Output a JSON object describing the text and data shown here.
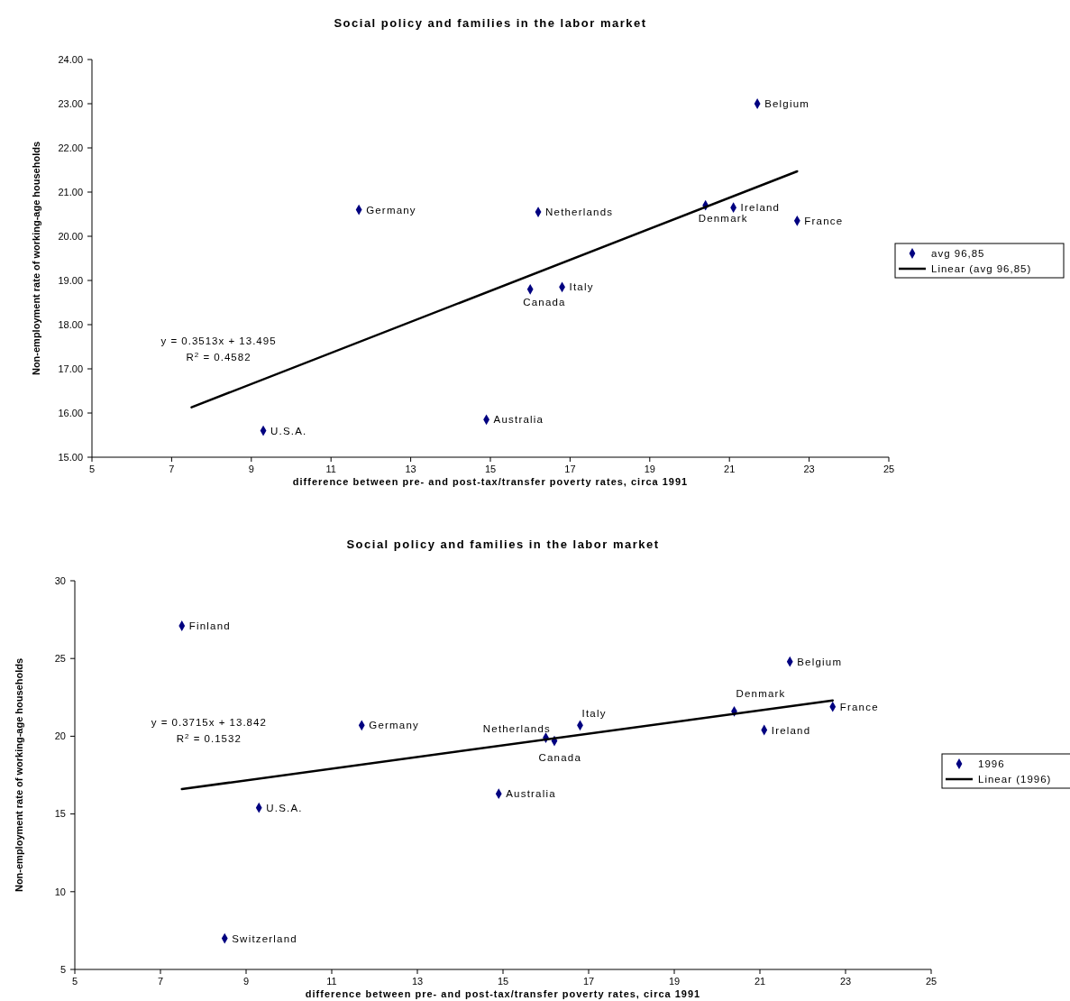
{
  "chart_data": [
    {
      "type": "scatter",
      "title": "Social policy and families in the labor market",
      "xlabel": "difference between pre- and post-tax/transfer poverty rates, circa 1991",
      "ylabel": "Non-employment rate of working-age households",
      "xlim": [
        5,
        25
      ],
      "xticks": [
        5,
        7,
        9,
        11,
        13,
        15,
        17,
        19,
        21,
        23,
        25
      ],
      "ylim": [
        15,
        24
      ],
      "yticks": [
        {
          "value": 15,
          "label": "15.00"
        },
        {
          "value": 16,
          "label": "16.00"
        },
        {
          "value": 17,
          "label": "17.00"
        },
        {
          "value": 18,
          "label": "18.00"
        },
        {
          "value": 19,
          "label": "19.00"
        },
        {
          "value": 20,
          "label": "20.00"
        },
        {
          "value": 21,
          "label": "21.00"
        },
        {
          "value": 22,
          "label": "22.00"
        },
        {
          "value": 23,
          "label": "23.00"
        },
        {
          "value": 24,
          "label": "24.00"
        }
      ],
      "grid": false,
      "legend": "right",
      "marker": "diamond",
      "series": [
        {
          "name": "avg 96,85",
          "color": "#000080",
          "x": [
            21.7,
            11.7,
            16.2,
            20.4,
            21.1,
            22.7,
            16.8,
            16.0,
            14.9,
            9.3
          ],
          "values": [
            23.0,
            20.6,
            20.55,
            20.7,
            20.65,
            20.35,
            18.85,
            18.8,
            15.85,
            15.6
          ]
        },
        {
          "name": "Linear (avg 96,85)",
          "type": "line",
          "color": "#000000",
          "marker": "none",
          "line_style": "solid",
          "x": [
            7.5,
            22.7
          ],
          "values": [
            16.13,
            21.47
          ]
        }
      ],
      "annotations": [
        {
          "text": "Belgium",
          "x": 21.7,
          "y": 23.0
        },
        {
          "text": "Germany",
          "x": 11.7,
          "y": 20.6
        },
        {
          "text": "Netherlands",
          "x": 16.2,
          "y": 20.55
        },
        {
          "text": "Denmark",
          "x": 20.4,
          "y": 20.7
        },
        {
          "text": "Ireland",
          "x": 21.1,
          "y": 20.65
        },
        {
          "text": "France",
          "x": 22.7,
          "y": 20.35
        },
        {
          "text": "Italy",
          "x": 16.8,
          "y": 18.85
        },
        {
          "text": "Canada",
          "x": 16.0,
          "y": 18.8
        },
        {
          "text": "Australia",
          "x": 14.9,
          "y": 15.85
        },
        {
          "text": "U.S.A.",
          "x": 9.3,
          "y": 15.6
        },
        "y = 0.3513x + 13.495",
        "R$^{2}$ = 0.4582"
      ]
    },
    {
      "type": "scatter",
      "title": "Social policy and families in the labor market",
      "xlabel": "difference between pre- and post-tax/transfer poverty rates, circa 1991",
      "ylabel": "Non-employment rate of working-age households",
      "xlim": [
        5,
        25
      ],
      "xticks": [
        5,
        7,
        9,
        11,
        13,
        15,
        17,
        19,
        21,
        23,
        25
      ],
      "ylim": [
        5,
        30
      ],
      "yticks": [
        5,
        10,
        15,
        20,
        25,
        30
      ],
      "grid": false,
      "legend": "right",
      "marker": "diamond",
      "series": [
        {
          "name": "1996",
          "color": "#000080",
          "x": [
            7.5,
            21.7,
            22.7,
            20.4,
            21.1,
            11.7,
            16.8,
            16.0,
            16.2,
            14.9,
            9.3,
            8.5
          ],
          "values": [
            27.1,
            24.8,
            21.9,
            21.6,
            20.4,
            20.7,
            20.7,
            19.9,
            19.7,
            16.3,
            15.4,
            7.0
          ]
        },
        {
          "name": "Linear (1996)",
          "type": "line",
          "color": "#000000",
          "marker": "none",
          "line_style": "solid",
          "x": [
            7.5,
            22.7
          ],
          "values": [
            16.6,
            22.3
          ]
        }
      ],
      "annotations": [
        {
          "text": "Finland",
          "x": 7.5,
          "y": 27.1
        },
        {
          "text": "Belgium",
          "x": 21.7,
          "y": 24.8
        },
        {
          "text": "France",
          "x": 22.7,
          "y": 21.9
        },
        {
          "text": "Denmark",
          "x": 20.4,
          "y": 21.6
        },
        {
          "text": "Ireland",
          "x": 21.1,
          "y": 20.4
        },
        {
          "text": "Germany",
          "x": 11.7,
          "y": 20.7
        },
        {
          "text": "Italy",
          "x": 16.8,
          "y": 20.7
        },
        {
          "text": "Canada",
          "x": 16.0,
          "y": 19.9
        },
        {
          "text": "Netherlands",
          "x": 16.2,
          "y": 19.7
        },
        {
          "text": "Australia",
          "x": 14.9,
          "y": 16.3
        },
        {
          "text": "U.S.A.",
          "x": 9.3,
          "y": 15.4
        },
        {
          "text": "Switzerland",
          "x": 8.5,
          "y": 7.0
        },
        "y = 0.3715x + 13.842",
        "R$^{2}$ = 0.1532"
      ]
    }
  ]
}
